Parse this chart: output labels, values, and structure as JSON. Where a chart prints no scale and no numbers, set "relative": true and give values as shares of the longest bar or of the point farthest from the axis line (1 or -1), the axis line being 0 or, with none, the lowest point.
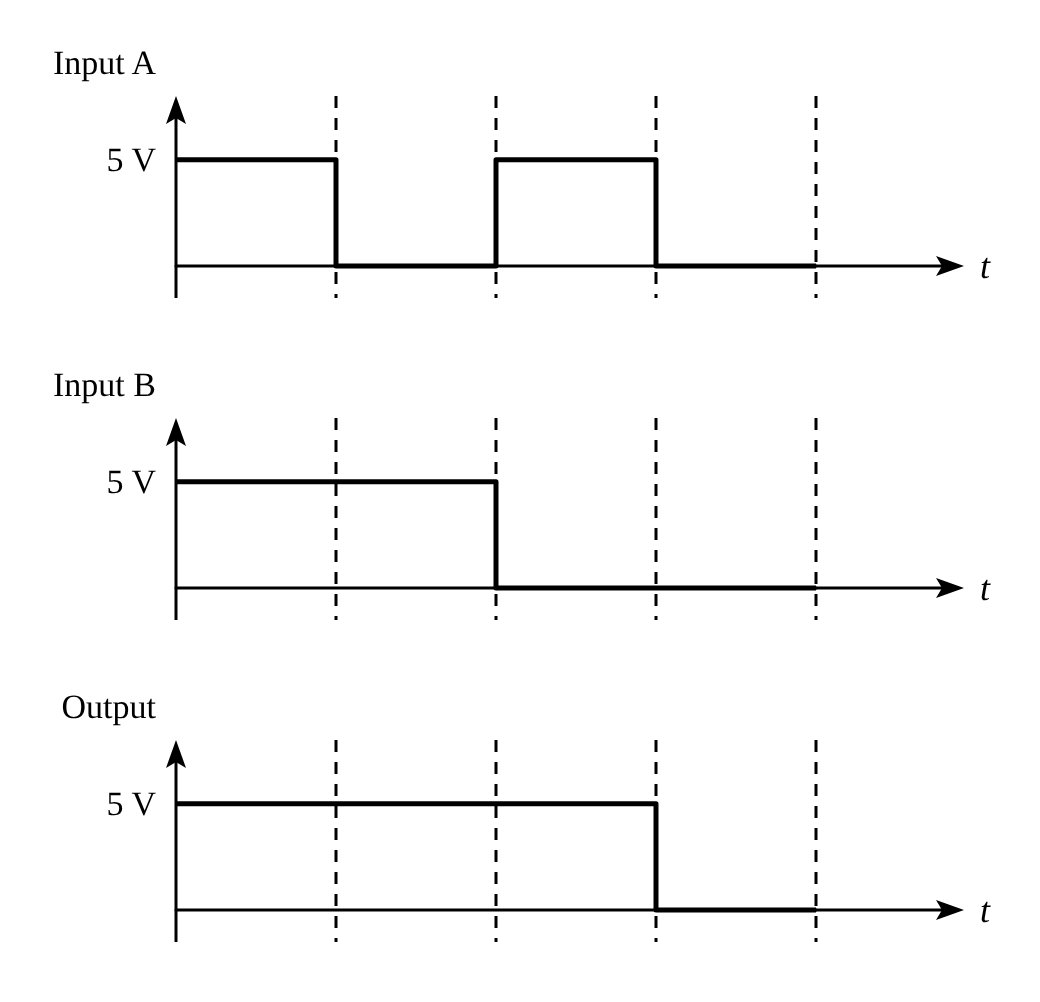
{
  "chart_data": [
    {
      "type": "step",
      "relative": true,
      "ylabel": "Input A",
      "xlabel": "t",
      "categories": [
        null,
        null,
        null,
        null,
        null
      ],
      "values": [
        1,
        0,
        1,
        0,
        0
      ],
      "color": "#000000",
      "annotations": [
        "5 V"
      ],
      "grid": "x"
    },
    {
      "type": "step",
      "relative": true,
      "ylabel": "Input B",
      "xlabel": "t",
      "categories": [
        null,
        null,
        null,
        null,
        null
      ],
      "values": [
        1,
        1,
        0,
        0,
        0
      ],
      "color": "#000000",
      "annotations": [
        "5 V"
      ],
      "grid": "x"
    },
    {
      "type": "step",
      "relative": true,
      "ylabel": "Output",
      "xlabel": "t",
      "categories": [
        null,
        null,
        null,
        null,
        null
      ],
      "values": [
        1,
        1,
        1,
        0,
        0
      ],
      "color": "#000000",
      "annotations": [
        "5 V"
      ],
      "grid": "x"
    }
  ]
}
